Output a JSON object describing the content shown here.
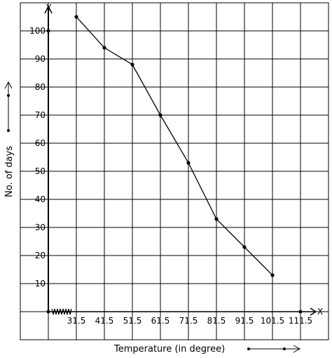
{
  "chart_data": {
    "type": "line",
    "title": "",
    "xlabel": "Temperature (in degree)",
    "ylabel": "No. of days",
    "x_axis_letter": "X",
    "y_axis_letter": "Y",
    "x_ticks": [
      31.5,
      41.5,
      51.5,
      61.5,
      71.5,
      81.5,
      91.5,
      101.5,
      111.5
    ],
    "x_tick_labels": [
      "31.5",
      "41.5",
      "51.5",
      "61.5",
      "71.5",
      "81.5",
      "91.5",
      "101.5",
      "111.5"
    ],
    "y_ticks": [
      10,
      20,
      30,
      40,
      50,
      60,
      70,
      80,
      90,
      100
    ],
    "y_tick_labels": [
      "10",
      "20",
      "30",
      "40",
      "50",
      "60",
      "70",
      "80",
      "90",
      "100"
    ],
    "xlim": [
      21.5,
      121.5
    ],
    "ylim": [
      0,
      110
    ],
    "grid": true,
    "axis_break": "x",
    "x": [
      31.5,
      41.5,
      51.5,
      61.5,
      71.5,
      81.5,
      91.5,
      101.5
    ],
    "values": [
      105,
      94,
      88,
      70,
      53,
      33,
      23,
      13
    ]
  }
}
